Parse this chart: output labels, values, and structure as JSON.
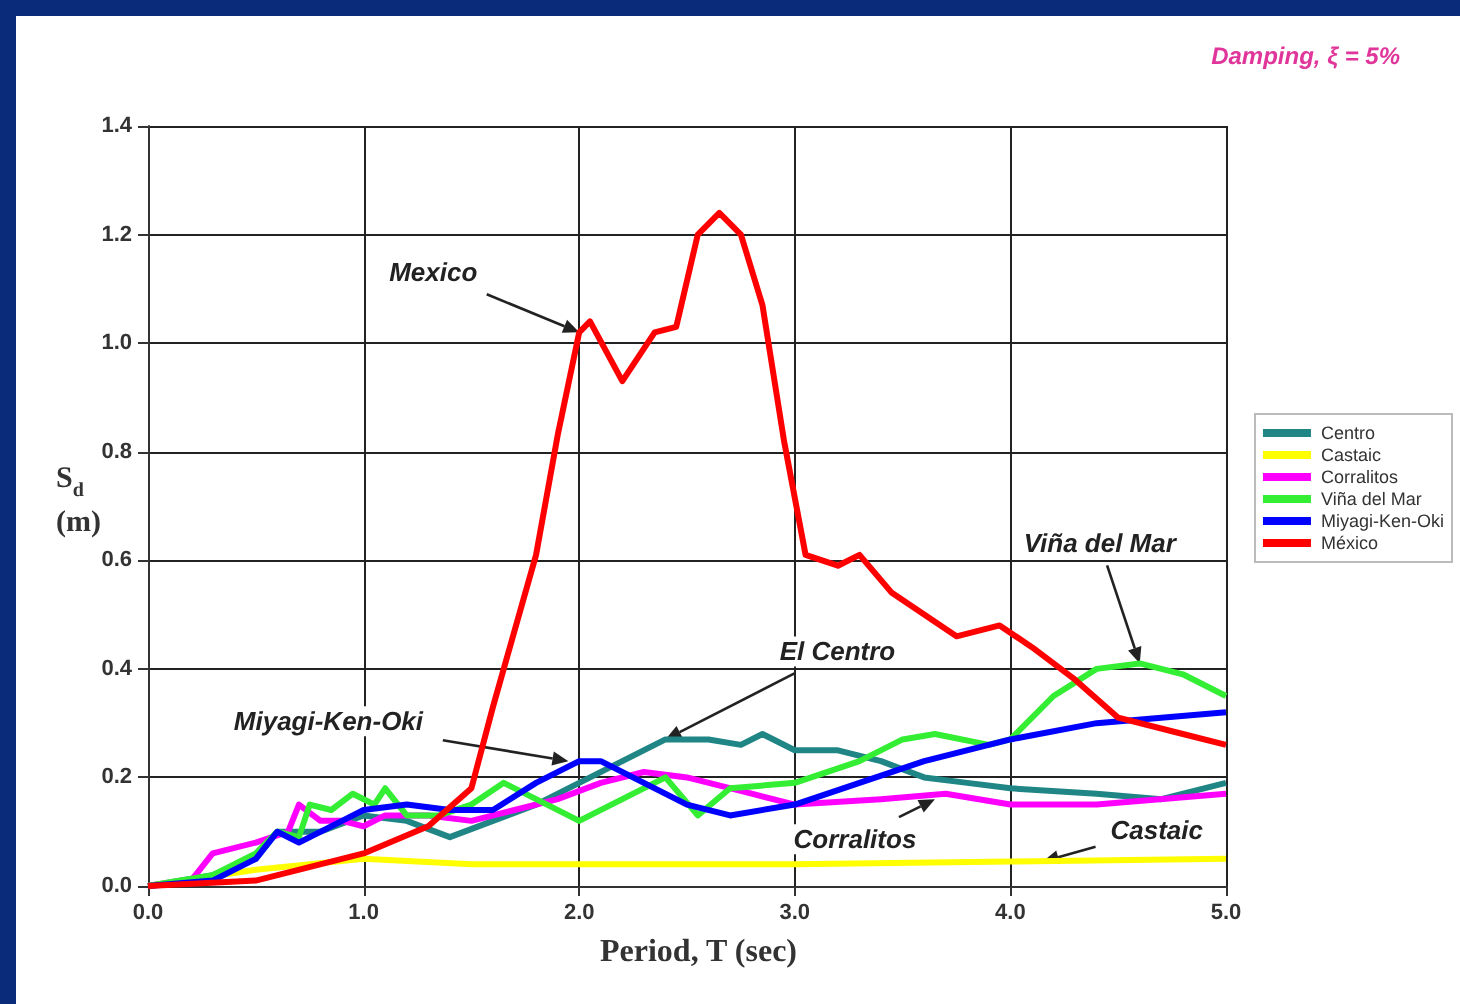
{
  "chart_data": {
    "type": "line",
    "xlabel": "Period, T (sec)",
    "ylabel": "S$_{d}$ (m)",
    "xlim": [
      0,
      5
    ],
    "xticks": [
      {
        "value": 0,
        "label": "0.0"
      },
      {
        "value": 1,
        "label": "1.0"
      },
      {
        "value": 2,
        "label": "2.0"
      },
      {
        "value": 3,
        "label": "3.0"
      },
      {
        "value": 4,
        "label": "4.0"
      },
      {
        "value": 5,
        "label": "5.0"
      }
    ],
    "ylim": [
      0,
      1.4
    ],
    "yticks": [
      {
        "value": 0,
        "label": "0.0"
      },
      {
        "value": 0.2,
        "label": "0.2"
      },
      {
        "value": 0.4,
        "label": "0.4"
      },
      {
        "value": 0.6,
        "label": "0.6"
      },
      {
        "value": 0.8,
        "label": "0.8"
      },
      {
        "value": 1.0,
        "label": "1.0"
      },
      {
        "value": 1.2,
        "label": "1.2"
      },
      {
        "value": 1.4,
        "label": "1.4"
      }
    ],
    "grid": true,
    "legend": "right",
    "marker": "none",
    "line_style": "solid",
    "series": [
      {
        "name": "Centro",
        "color": "#1f8585",
        "x": [
          0,
          0.3,
          0.5,
          0.6,
          0.8,
          1.0,
          1.2,
          1.4,
          1.6,
          1.8,
          2.0,
          2.2,
          2.4,
          2.6,
          2.75,
          2.85,
          3.0,
          3.2,
          3.4,
          3.6,
          3.8,
          4.0,
          4.4,
          4.7,
          5.0
        ],
        "values": [
          0,
          0.02,
          0.05,
          0.1,
          0.1,
          0.13,
          0.12,
          0.09,
          0.12,
          0.15,
          0.19,
          0.23,
          0.27,
          0.27,
          0.26,
          0.28,
          0.25,
          0.25,
          0.23,
          0.2,
          0.19,
          0.18,
          0.17,
          0.16,
          0.19
        ]
      },
      {
        "name": "Castaic",
        "color": "#ffff00",
        "x": [
          0,
          0.5,
          1.0,
          1.5,
          2.0,
          3.0,
          4.0,
          5.0
        ],
        "values": [
          0,
          0.03,
          0.05,
          0.04,
          0.04,
          0.04,
          0.045,
          0.05
        ]
      },
      {
        "name": "Corralitos",
        "color": "#ff00ff",
        "x": [
          0,
          0.2,
          0.3,
          0.5,
          0.65,
          0.7,
          0.8,
          0.9,
          1.0,
          1.1,
          1.3,
          1.5,
          1.7,
          1.9,
          2.1,
          2.3,
          2.5,
          2.8,
          3.0,
          3.4,
          3.7,
          4.0,
          4.4,
          5.0
        ],
        "values": [
          0,
          0.01,
          0.06,
          0.08,
          0.1,
          0.15,
          0.12,
          0.12,
          0.11,
          0.13,
          0.13,
          0.12,
          0.14,
          0.16,
          0.19,
          0.21,
          0.2,
          0.17,
          0.15,
          0.16,
          0.17,
          0.15,
          0.15,
          0.17
        ]
      },
      {
        "name": "Viña del Mar",
        "color": "#33ee33",
        "x": [
          0,
          0.3,
          0.5,
          0.6,
          0.7,
          0.75,
          0.85,
          0.95,
          1.05,
          1.1,
          1.2,
          1.35,
          1.5,
          1.65,
          1.8,
          2.0,
          2.2,
          2.4,
          2.55,
          2.7,
          3.0,
          3.3,
          3.5,
          3.65,
          3.9,
          4.0,
          4.2,
          4.4,
          4.6,
          4.8,
          5.0
        ],
        "values": [
          0,
          0.02,
          0.06,
          0.1,
          0.09,
          0.15,
          0.14,
          0.17,
          0.15,
          0.18,
          0.13,
          0.13,
          0.15,
          0.19,
          0.16,
          0.12,
          0.16,
          0.2,
          0.13,
          0.18,
          0.19,
          0.23,
          0.27,
          0.28,
          0.26,
          0.27,
          0.35,
          0.4,
          0.41,
          0.39,
          0.35
        ]
      },
      {
        "name": "Miyagi-Ken-Oki",
        "color": "#0000ff",
        "x": [
          0,
          0.3,
          0.5,
          0.6,
          0.7,
          0.9,
          1.0,
          1.2,
          1.4,
          1.6,
          1.8,
          2.0,
          2.1,
          2.3,
          2.5,
          2.7,
          3.0,
          3.3,
          3.6,
          4.0,
          4.4,
          4.7,
          5.0
        ],
        "values": [
          0,
          0.01,
          0.05,
          0.1,
          0.08,
          0.12,
          0.14,
          0.15,
          0.14,
          0.14,
          0.19,
          0.23,
          0.23,
          0.19,
          0.15,
          0.13,
          0.15,
          0.19,
          0.23,
          0.27,
          0.3,
          0.31,
          0.32
        ]
      },
      {
        "name": "México",
        "color": "#ff0000",
        "x": [
          0,
          0.5,
          1.0,
          1.3,
          1.5,
          1.6,
          1.8,
          1.9,
          2.0,
          2.05,
          2.2,
          2.35,
          2.45,
          2.55,
          2.65,
          2.75,
          2.85,
          2.95,
          3.05,
          3.2,
          3.3,
          3.45,
          3.75,
          3.95,
          4.1,
          4.3,
          4.5,
          4.8,
          5.0
        ],
        "values": [
          0,
          0.01,
          0.06,
          0.11,
          0.18,
          0.33,
          0.61,
          0.83,
          1.02,
          1.04,
          0.93,
          1.02,
          1.03,
          1.2,
          1.24,
          1.2,
          1.07,
          0.82,
          0.61,
          0.59,
          0.61,
          0.54,
          0.46,
          0.48,
          0.44,
          0.38,
          0.31,
          0.28,
          0.26
        ]
      }
    ],
    "annotations": [
      "Damping, ξ = 5%",
      {
        "text": "Mexico",
        "x": 2.0,
        "y": 1.02
      },
      {
        "text": "Miyagi-Ken-Oki",
        "x": 1.95,
        "y": 0.23
      },
      {
        "text": "El Centro",
        "x": 2.4,
        "y": 0.27
      },
      {
        "text": "Viña del Mar",
        "x": 4.6,
        "y": 0.41
      },
      {
        "text": "Corralitos",
        "x": 3.65,
        "y": 0.16
      },
      {
        "text": "Castaic",
        "x": 4.15,
        "y": 0.045
      }
    ]
  }
}
